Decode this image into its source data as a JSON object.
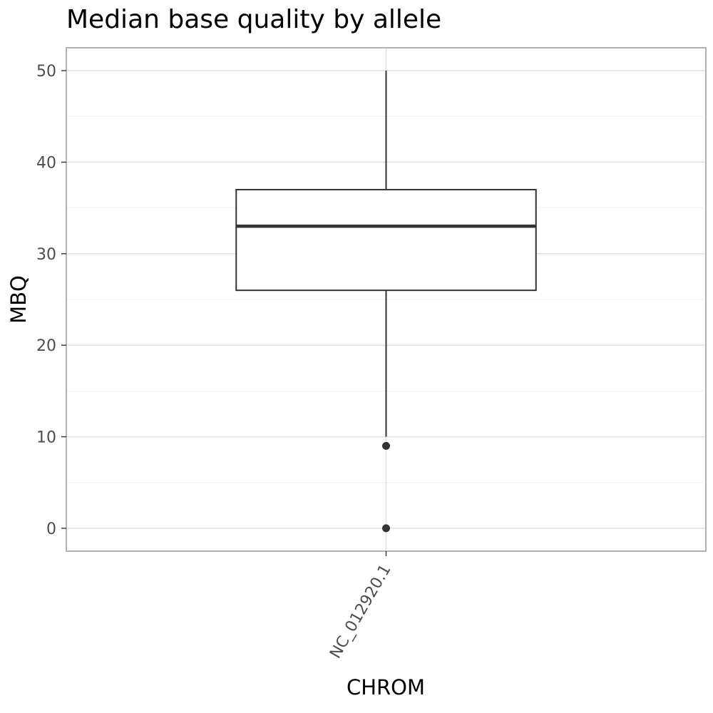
{
  "chart_data": {
    "type": "box",
    "title": "Median base quality by allele",
    "xlabel": "CHROM",
    "ylabel": "MBQ",
    "categories": [
      "NC_012920.1"
    ],
    "ylim": [
      -2.5,
      52.5
    ],
    "y_ticks": [
      0,
      10,
      20,
      30,
      40,
      50
    ],
    "grid": true,
    "boxes": [
      {
        "category": "NC_012920.1",
        "whisker_low": 10,
        "q1": 26,
        "median": 33,
        "q3": 37,
        "whisker_high": 50,
        "outliers": [
          9,
          0
        ]
      }
    ],
    "colors": {
      "box_line": "#333333",
      "box_fill": "#ffffff",
      "grid_major": "#dedede",
      "grid_minor": "#f0f0f0",
      "panel_border": "#b3b3b3",
      "tick_text": "#4d4d4d"
    }
  }
}
